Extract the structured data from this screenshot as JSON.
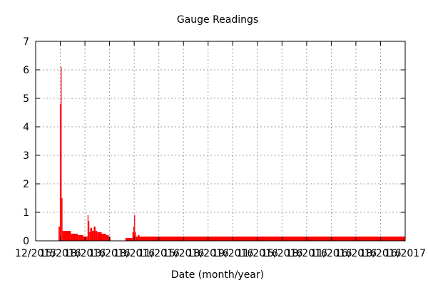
{
  "chart_data": {
    "type": "bar",
    "title": "Gauge Readings",
    "xlabel": "Date (month/year)",
    "ylabel": "",
    "ylim": [
      0,
      7
    ],
    "yticks": [
      "0",
      "1",
      "2",
      "3",
      "4",
      "5",
      "6",
      "7"
    ],
    "xticks": [
      "12/2015",
      "15/2016",
      "18/2016",
      "13/2016",
      "18/2016",
      "11/2016",
      "15/2016",
      "18/2016",
      "19/2016",
      "11/2016",
      "15/2016",
      "18/2016",
      "11/2016",
      "16/2016",
      "18/2016",
      "16/2017"
    ],
    "x_range_days": [
      0,
      420
    ],
    "grid": true,
    "legend": "none",
    "color": "#ff0000",
    "series": [
      {
        "x": [
          0,
          26,
          26.5,
          27.5,
          28.5,
          29.5,
          30.5,
          32,
          40,
          48,
          54,
          59,
          60,
          61,
          62,
          64,
          66,
          68,
          70,
          75,
          80,
          83,
          85,
          102,
          110,
          111,
          112,
          113,
          114,
          116,
          118,
          420
        ],
        "values": [
          0,
          0.5,
          0.5,
          4.8,
          6.1,
          1.5,
          0.35,
          0.35,
          0.25,
          0.2,
          0.15,
          0.9,
          0.7,
          0.3,
          0.45,
          0.35,
          0.5,
          0.35,
          0.3,
          0.25,
          0.2,
          0.15,
          0,
          0.1,
          0.3,
          0.5,
          0.9,
          0.3,
          0.15,
          0.2,
          0.15,
          0
        ]
      }
    ]
  }
}
